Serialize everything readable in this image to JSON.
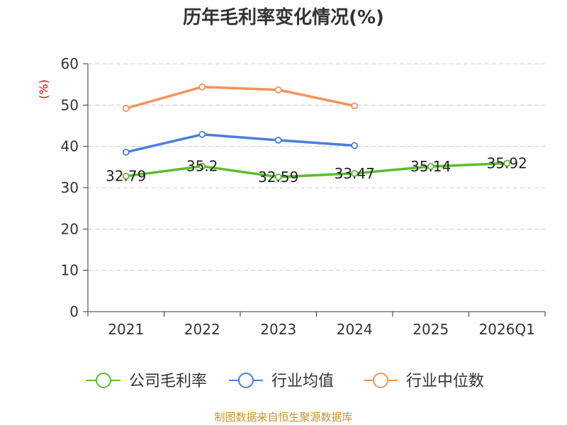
{
  "chart_data": {
    "type": "line",
    "title": "历年毛利率变化情况(%)",
    "ylabel": "(%)",
    "xlabel": "",
    "categories": [
      "2021",
      "2022",
      "2023",
      "2024",
      "2025",
      "2026Q1"
    ],
    "ylim": [
      0,
      60
    ],
    "yticks": [
      "0",
      "10",
      "20",
      "30",
      "40",
      "50",
      "60"
    ],
    "grid": true,
    "legend_position": "bottom",
    "series": [
      {
        "name": "公司毛利率",
        "color": "#5bbd2b",
        "values": [
          32.79,
          35.2,
          32.59,
          33.47,
          35.14,
          35.92
        ],
        "labels": [
          "32.79",
          "35.2",
          "32.59",
          "33.47",
          "35.14",
          "35.92"
        ]
      },
      {
        "name": "行业均值",
        "color": "#4a7fd9",
        "values": [
          38.6,
          42.9,
          41.5,
          40.2,
          null,
          null
        ]
      },
      {
        "name": "行业中位数",
        "color": "#f4935a",
        "values": [
          49.2,
          54.4,
          53.7,
          49.8,
          null,
          null
        ]
      }
    ],
    "source": "制图数据来自恒生聚源数据库"
  }
}
